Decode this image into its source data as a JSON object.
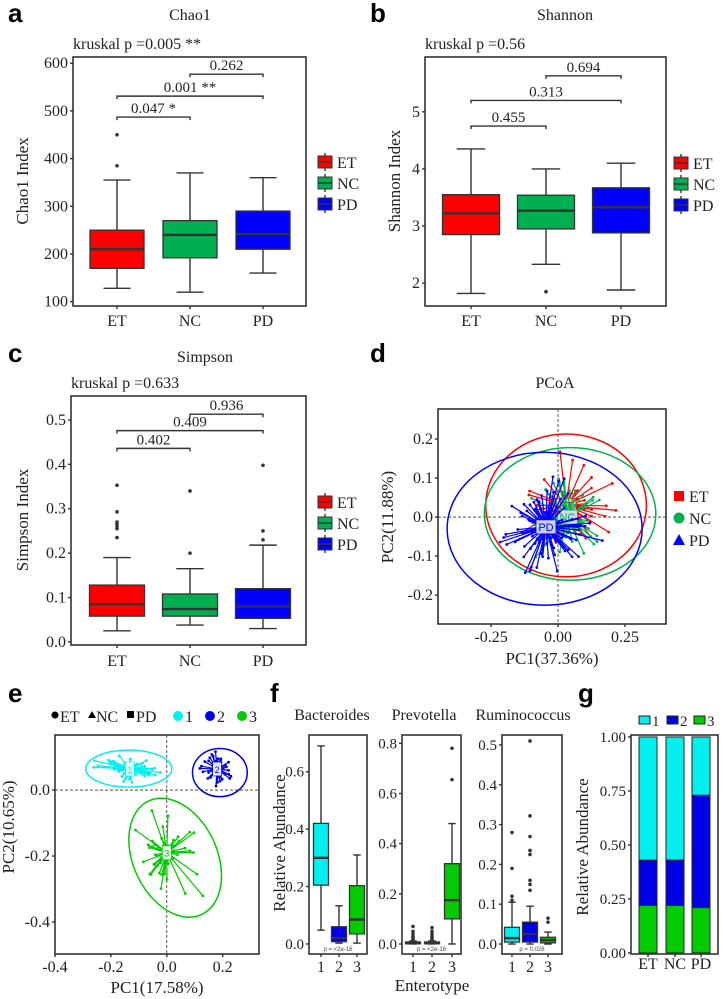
{
  "panel_letters": [
    "a",
    "b",
    "c",
    "d",
    "e",
    "f",
    "g"
  ],
  "colors": {
    "ET": "#ff0000",
    "NC": "#00b050",
    "PD": "#0000ff",
    "type1": "#00f0f0",
    "type2": "#0000e6",
    "type3": "#00cc00",
    "outline": "#333333"
  },
  "chart_data": [
    {
      "panel": "a",
      "type": "box",
      "title": "Chao1",
      "annotation": "kruskal p =0.005 **",
      "ylabel": "Chao1 Index",
      "xlabel": "",
      "categories": [
        "ET",
        "NC",
        "PD"
      ],
      "ylim": [
        91,
        613
      ],
      "yticks": [
        "100",
        "200",
        "300",
        "400",
        "500",
        "600"
      ],
      "ytick_values": [
        100,
        200,
        300,
        400,
        500,
        600
      ],
      "legend": [
        "ET",
        "NC",
        "PD"
      ],
      "boxes": [
        {
          "min": 128,
          "q1": 170,
          "median": 210,
          "q3": 250,
          "max": 355,
          "outliers": [
            385,
            450
          ]
        },
        {
          "min": 120,
          "q1": 192,
          "median": 240,
          "q3": 270,
          "max": 370,
          "outliers": []
        },
        {
          "min": 160,
          "q1": 210,
          "median": 242,
          "q3": 290,
          "max": 360,
          "outliers": []
        }
      ],
      "brackets": [
        {
          "from": 0,
          "to": 1,
          "y": 487,
          "label": "0.047 *"
        },
        {
          "from": 0,
          "to": 2,
          "y": 531,
          "label": "0.001 **"
        },
        {
          "from": 1,
          "to": 2,
          "y": 577,
          "label": "0.262"
        }
      ]
    },
    {
      "panel": "b",
      "type": "box",
      "title": "Shannon",
      "annotation": "kruskal p =0.56",
      "ylabel": "Shannon Index",
      "xlabel": "",
      "categories": [
        "ET",
        "NC",
        "PD"
      ],
      "ylim": [
        1.6,
        5.96
      ],
      "yticks": [
        "2",
        "3",
        "4",
        "5"
      ],
      "ytick_values": [
        2,
        3,
        4,
        5
      ],
      "legend": [
        "ET",
        "NC",
        "PD"
      ],
      "boxes": [
        {
          "min": 1.82,
          "q1": 2.85,
          "median": 3.22,
          "q3": 3.55,
          "max": 4.35,
          "outliers": []
        },
        {
          "min": 2.33,
          "q1": 2.95,
          "median": 3.27,
          "q3": 3.54,
          "max": 4.0,
          "outliers": [
            1.85
          ]
        },
        {
          "min": 1.88,
          "q1": 2.88,
          "median": 3.33,
          "q3": 3.67,
          "max": 4.1,
          "outliers": []
        }
      ],
      "brackets": [
        {
          "from": 0,
          "to": 1,
          "y": 4.75,
          "label": "0.455"
        },
        {
          "from": 0,
          "to": 2,
          "y": 5.2,
          "label": "0.313"
        },
        {
          "from": 1,
          "to": 2,
          "y": 5.63,
          "label": "0.694"
        }
      ]
    },
    {
      "panel": "c",
      "type": "box",
      "title": "Simpson",
      "annotation": "kruskal p =0.633",
      "ylabel": "Simpson Index",
      "xlabel": "",
      "categories": [
        "ET",
        "NC",
        "PD"
      ],
      "ylim": [
        -0.007,
        0.554
      ],
      "yticks": [
        "0.0",
        "0.1",
        "0.2",
        "0.3",
        "0.4",
        "0.5"
      ],
      "ytick_values": [
        0,
        0.1,
        0.2,
        0.3,
        0.4,
        0.5
      ],
      "legend": [
        "ET",
        "NC",
        "PD"
      ],
      "boxes": [
        {
          "min": 0.025,
          "q1": 0.058,
          "median": 0.085,
          "q3": 0.128,
          "max": 0.19,
          "outliers": [
            0.235,
            0.255,
            0.26,
            0.265,
            0.27,
            0.293,
            0.353
          ]
        },
        {
          "min": 0.038,
          "q1": 0.058,
          "median": 0.074,
          "q3": 0.108,
          "max": 0.165,
          "outliers": [
            0.2,
            0.34
          ]
        },
        {
          "min": 0.03,
          "q1": 0.053,
          "median": 0.08,
          "q3": 0.12,
          "max": 0.218,
          "outliers": [
            0.23,
            0.25,
            0.398
          ]
        }
      ],
      "brackets": [
        {
          "from": 0,
          "to": 1,
          "y": 0.436,
          "label": "0.402"
        },
        {
          "from": 0,
          "to": 2,
          "y": 0.476,
          "label": "0.409"
        },
        {
          "from": 1,
          "to": 2,
          "y": 0.513,
          "label": "0.936"
        }
      ]
    },
    {
      "panel": "d",
      "type": "scatter",
      "title": "PCoA",
      "xlabel": "PC1(37.36%)",
      "ylabel": "PC2(11.88%)",
      "xlim": [
        -0.448,
        0.403
      ],
      "ylim": [
        -0.274,
        0.277
      ],
      "xticks": [
        "-0.25",
        "0.00",
        "0.25"
      ],
      "xtick_values": [
        -0.25,
        0,
        0.25
      ],
      "yticks": [
        "-0.2",
        "-0.1",
        "0.0",
        "0.1",
        "0.2"
      ],
      "ytick_values": [
        -0.2,
        -0.1,
        0,
        0.1,
        0.2
      ],
      "legend": [
        "ET",
        "NC",
        "PD"
      ],
      "groups": [
        {
          "name": "ET",
          "centroid": [
            0.03,
            0.03
          ],
          "ellipse_radii": [
            0.3,
            0.183
          ],
          "ellipse_center": [
            0.03,
            0.03
          ],
          "n": 60,
          "spread": [
            0.11,
            0.08
          ]
        },
        {
          "name": "NC",
          "centroid": [
            0.035,
            0.0
          ],
          "ellipse_radii": [
            0.32,
            0.17
          ],
          "ellipse_center": [
            0.045,
            0.008
          ],
          "n": 55,
          "spread": [
            0.11,
            0.075
          ]
        },
        {
          "name": "PD",
          "centroid": [
            -0.045,
            -0.025
          ],
          "ellipse_radii": [
            0.364,
            0.196
          ],
          "ellipse_center": [
            -0.05,
            -0.03
          ],
          "n": 95,
          "spread": [
            0.13,
            0.09
          ]
        }
      ]
    },
    {
      "panel": "e",
      "type": "scatter",
      "title": "",
      "xlabel": "PC1(17.58%)",
      "ylabel": "PC2(10.65%)",
      "xlim": [
        -0.4,
        0.33
      ],
      "ylim": [
        -0.497,
        0.167
      ],
      "xticks": [
        "-0.4",
        "-0.2",
        "0.0",
        "0.2"
      ],
      "xtick_values": [
        -0.4,
        -0.2,
        0,
        0.2
      ],
      "yticks": [
        "-0.4",
        "-0.2",
        "0.0"
      ],
      "ytick_values": [
        -0.4,
        -0.2,
        0
      ],
      "legend_shapes": [
        "ET",
        "NC",
        "PD"
      ],
      "legend": [
        "1",
        "2",
        "3"
      ],
      "groups": [
        {
          "name": "1",
          "centroid": [
            -0.132,
            0.064
          ],
          "ellipse_radii": [
            0.154,
            0.056
          ],
          "ellipse_center": [
            -0.136,
            0.065
          ],
          "n": 60,
          "spread": [
            0.09,
            0.03
          ]
        },
        {
          "name": "2",
          "centroid": [
            0.18,
            0.064
          ],
          "ellipse_radii": [
            0.098,
            0.073
          ],
          "ellipse_center": [
            0.19,
            0.053
          ],
          "n": 50,
          "spread": [
            0.05,
            0.04
          ]
        },
        {
          "name": "3",
          "centroid": [
            0.0,
            -0.19
          ],
          "ellipse_radii": [
            0.15,
            0.19
          ],
          "ellipse_center": [
            0.03,
            -0.205
          ],
          "n": 50,
          "spread": [
            0.08,
            0.1
          ]
        }
      ]
    },
    {
      "panel": "f",
      "type": "box",
      "xlabel": "Enterotype",
      "ylabel": "Relative Abundance",
      "categories": [
        "1",
        "2",
        "3"
      ],
      "subplots": [
        {
          "title": "Bacteroides",
          "ylim": [
            -0.035,
            0.728
          ],
          "yticks": [
            "0.0",
            "0.2",
            "0.4",
            "0.6"
          ],
          "ytick_values": [
            0,
            0.2,
            0.4,
            0.6
          ],
          "p_label": "p = <2e-16",
          "boxes": [
            {
              "min": 0.048,
              "q1": 0.205,
              "median": 0.3,
              "q3": 0.42,
              "max": 0.69,
              "outliers": []
            },
            {
              "min": 0.003,
              "q1": 0.008,
              "median": 0.02,
              "q3": 0.06,
              "max": 0.133,
              "outliers": []
            },
            {
              "min": 0.003,
              "q1": 0.035,
              "median": 0.085,
              "q3": 0.203,
              "max": 0.31,
              "outliers": []
            }
          ]
        },
        {
          "title": "Prevotella",
          "ylim": [
            -0.04,
            0.833
          ],
          "yticks": [
            "0.0",
            "0.2",
            "0.4",
            "0.6",
            "0.8"
          ],
          "ytick_values": [
            0,
            0.2,
            0.4,
            0.6,
            0.8
          ],
          "p_label": "p = <2e-16",
          "boxes": [
            {
              "min": 0,
              "q1": 0.001,
              "median": 0.003,
              "q3": 0.008,
              "max": 0.012,
              "outliers": [
                0.018,
                0.024,
                0.03,
                0.04,
                0.05,
                0.07
              ]
            },
            {
              "min": 0,
              "q1": 0.001,
              "median": 0.003,
              "q3": 0.008,
              "max": 0.012,
              "outliers": [
                0.018,
                0.024,
                0.03,
                0.04,
                0.05,
                0.065
              ]
            },
            {
              "min": 0,
              "q1": 0.1,
              "median": 0.175,
              "q3": 0.32,
              "max": 0.48,
              "outliers": [
                0.655,
                0.78
              ]
            }
          ]
        },
        {
          "title": "Ruminococcus",
          "ylim": [
            -0.025,
            0.525
          ],
          "yticks": [
            "0.0",
            "0.1",
            "0.2",
            "0.3",
            "0.4",
            "0.5"
          ],
          "ytick_values": [
            0,
            0.1,
            0.2,
            0.3,
            0.4,
            0.5
          ],
          "p_label": "p = 0.026",
          "boxes": [
            {
              "min": 0,
              "q1": 0.005,
              "median": 0.015,
              "q3": 0.042,
              "max": 0.105,
              "outliers": [
                0.11,
                0.12,
                0.19,
                0.28
              ]
            },
            {
              "min": 0,
              "q1": 0.005,
              "median": 0.025,
              "q3": 0.055,
              "max": 0.095,
              "outliers": [
                0.135,
                0.15,
                0.16,
                0.225,
                0.235,
                0.27,
                0.322,
                0.51
              ]
            },
            {
              "min": 0,
              "q1": 0.003,
              "median": 0.01,
              "q3": 0.017,
              "max": 0.03,
              "outliers": [
                0.055,
                0.065
              ]
            }
          ]
        }
      ]
    },
    {
      "panel": "g",
      "type": "bar",
      "stacked": true,
      "xlabel": "",
      "ylabel": "Relative Abundance",
      "categories": [
        "ET",
        "NC",
        "PD"
      ],
      "ylim": [
        -0.005,
        1.009
      ],
      "yticks": [
        "0.00",
        "0.25",
        "0.50",
        "0.75",
        "1.00"
      ],
      "ytick_values": [
        0,
        0.25,
        0.5,
        0.75,
        1
      ],
      "legend": [
        "1",
        "2",
        "3"
      ],
      "series": [
        {
          "name": "3",
          "values": [
            0.22,
            0.22,
            0.21
          ]
        },
        {
          "name": "2",
          "values": [
            0.21,
            0.21,
            0.52
          ]
        },
        {
          "name": "1",
          "values": [
            0.57,
            0.57,
            0.27
          ]
        }
      ]
    }
  ]
}
